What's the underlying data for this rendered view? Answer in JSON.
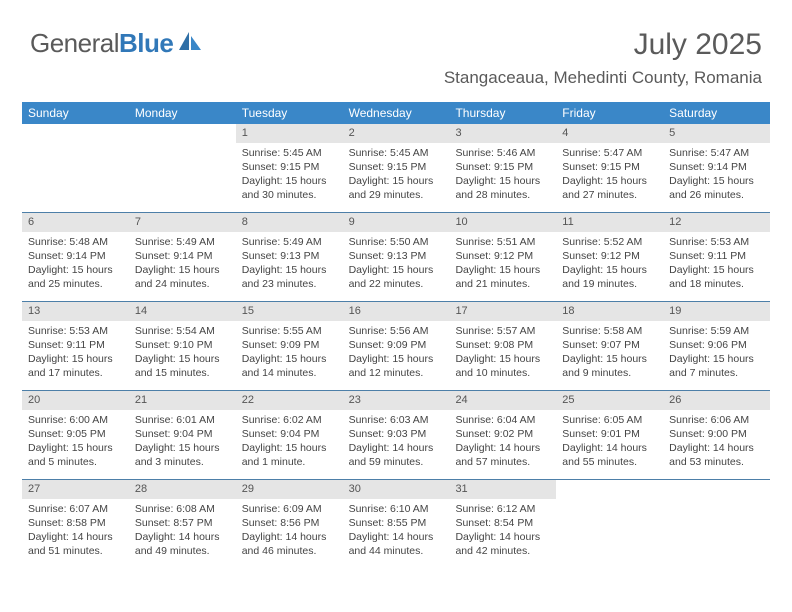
{
  "logo": {
    "text1": "General",
    "text2": "Blue"
  },
  "title": "July 2025",
  "subtitle": "Stangaceaua, Mehedinti County, Romania",
  "colors": {
    "header_bg": "#3a87c8",
    "header_text": "#ffffff",
    "rule": "#4d7fa8",
    "day_num_bg": "#e5e5e5",
    "body_text": "#444444",
    "title_text": "#5a5a5a",
    "logo_gray": "#5a5a5a",
    "logo_blue": "#3178b8"
  },
  "day_labels": [
    "Sunday",
    "Monday",
    "Tuesday",
    "Wednesday",
    "Thursday",
    "Friday",
    "Saturday"
  ],
  "weeks": [
    [
      {
        "n": "",
        "sunrise": "",
        "sunset": "",
        "daylight": ""
      },
      {
        "n": "",
        "sunrise": "",
        "sunset": "",
        "daylight": ""
      },
      {
        "n": "1",
        "sunrise": "Sunrise: 5:45 AM",
        "sunset": "Sunset: 9:15 PM",
        "daylight": "Daylight: 15 hours and 30 minutes."
      },
      {
        "n": "2",
        "sunrise": "Sunrise: 5:45 AM",
        "sunset": "Sunset: 9:15 PM",
        "daylight": "Daylight: 15 hours and 29 minutes."
      },
      {
        "n": "3",
        "sunrise": "Sunrise: 5:46 AM",
        "sunset": "Sunset: 9:15 PM",
        "daylight": "Daylight: 15 hours and 28 minutes."
      },
      {
        "n": "4",
        "sunrise": "Sunrise: 5:47 AM",
        "sunset": "Sunset: 9:15 PM",
        "daylight": "Daylight: 15 hours and 27 minutes."
      },
      {
        "n": "5",
        "sunrise": "Sunrise: 5:47 AM",
        "sunset": "Sunset: 9:14 PM",
        "daylight": "Daylight: 15 hours and 26 minutes."
      }
    ],
    [
      {
        "n": "6",
        "sunrise": "Sunrise: 5:48 AM",
        "sunset": "Sunset: 9:14 PM",
        "daylight": "Daylight: 15 hours and 25 minutes."
      },
      {
        "n": "7",
        "sunrise": "Sunrise: 5:49 AM",
        "sunset": "Sunset: 9:14 PM",
        "daylight": "Daylight: 15 hours and 24 minutes."
      },
      {
        "n": "8",
        "sunrise": "Sunrise: 5:49 AM",
        "sunset": "Sunset: 9:13 PM",
        "daylight": "Daylight: 15 hours and 23 minutes."
      },
      {
        "n": "9",
        "sunrise": "Sunrise: 5:50 AM",
        "sunset": "Sunset: 9:13 PM",
        "daylight": "Daylight: 15 hours and 22 minutes."
      },
      {
        "n": "10",
        "sunrise": "Sunrise: 5:51 AM",
        "sunset": "Sunset: 9:12 PM",
        "daylight": "Daylight: 15 hours and 21 minutes."
      },
      {
        "n": "11",
        "sunrise": "Sunrise: 5:52 AM",
        "sunset": "Sunset: 9:12 PM",
        "daylight": "Daylight: 15 hours and 19 minutes."
      },
      {
        "n": "12",
        "sunrise": "Sunrise: 5:53 AM",
        "sunset": "Sunset: 9:11 PM",
        "daylight": "Daylight: 15 hours and 18 minutes."
      }
    ],
    [
      {
        "n": "13",
        "sunrise": "Sunrise: 5:53 AM",
        "sunset": "Sunset: 9:11 PM",
        "daylight": "Daylight: 15 hours and 17 minutes."
      },
      {
        "n": "14",
        "sunrise": "Sunrise: 5:54 AM",
        "sunset": "Sunset: 9:10 PM",
        "daylight": "Daylight: 15 hours and 15 minutes."
      },
      {
        "n": "15",
        "sunrise": "Sunrise: 5:55 AM",
        "sunset": "Sunset: 9:09 PM",
        "daylight": "Daylight: 15 hours and 14 minutes."
      },
      {
        "n": "16",
        "sunrise": "Sunrise: 5:56 AM",
        "sunset": "Sunset: 9:09 PM",
        "daylight": "Daylight: 15 hours and 12 minutes."
      },
      {
        "n": "17",
        "sunrise": "Sunrise: 5:57 AM",
        "sunset": "Sunset: 9:08 PM",
        "daylight": "Daylight: 15 hours and 10 minutes."
      },
      {
        "n": "18",
        "sunrise": "Sunrise: 5:58 AM",
        "sunset": "Sunset: 9:07 PM",
        "daylight": "Daylight: 15 hours and 9 minutes."
      },
      {
        "n": "19",
        "sunrise": "Sunrise: 5:59 AM",
        "sunset": "Sunset: 9:06 PM",
        "daylight": "Daylight: 15 hours and 7 minutes."
      }
    ],
    [
      {
        "n": "20",
        "sunrise": "Sunrise: 6:00 AM",
        "sunset": "Sunset: 9:05 PM",
        "daylight": "Daylight: 15 hours and 5 minutes."
      },
      {
        "n": "21",
        "sunrise": "Sunrise: 6:01 AM",
        "sunset": "Sunset: 9:04 PM",
        "daylight": "Daylight: 15 hours and 3 minutes."
      },
      {
        "n": "22",
        "sunrise": "Sunrise: 6:02 AM",
        "sunset": "Sunset: 9:04 PM",
        "daylight": "Daylight: 15 hours and 1 minute."
      },
      {
        "n": "23",
        "sunrise": "Sunrise: 6:03 AM",
        "sunset": "Sunset: 9:03 PM",
        "daylight": "Daylight: 14 hours and 59 minutes."
      },
      {
        "n": "24",
        "sunrise": "Sunrise: 6:04 AM",
        "sunset": "Sunset: 9:02 PM",
        "daylight": "Daylight: 14 hours and 57 minutes."
      },
      {
        "n": "25",
        "sunrise": "Sunrise: 6:05 AM",
        "sunset": "Sunset: 9:01 PM",
        "daylight": "Daylight: 14 hours and 55 minutes."
      },
      {
        "n": "26",
        "sunrise": "Sunrise: 6:06 AM",
        "sunset": "Sunset: 9:00 PM",
        "daylight": "Daylight: 14 hours and 53 minutes."
      }
    ],
    [
      {
        "n": "27",
        "sunrise": "Sunrise: 6:07 AM",
        "sunset": "Sunset: 8:58 PM",
        "daylight": "Daylight: 14 hours and 51 minutes."
      },
      {
        "n": "28",
        "sunrise": "Sunrise: 6:08 AM",
        "sunset": "Sunset: 8:57 PM",
        "daylight": "Daylight: 14 hours and 49 minutes."
      },
      {
        "n": "29",
        "sunrise": "Sunrise: 6:09 AM",
        "sunset": "Sunset: 8:56 PM",
        "daylight": "Daylight: 14 hours and 46 minutes."
      },
      {
        "n": "30",
        "sunrise": "Sunrise: 6:10 AM",
        "sunset": "Sunset: 8:55 PM",
        "daylight": "Daylight: 14 hours and 44 minutes."
      },
      {
        "n": "31",
        "sunrise": "Sunrise: 6:12 AM",
        "sunset": "Sunset: 8:54 PM",
        "daylight": "Daylight: 14 hours and 42 minutes."
      },
      {
        "n": "",
        "sunrise": "",
        "sunset": "",
        "daylight": ""
      },
      {
        "n": "",
        "sunrise": "",
        "sunset": "",
        "daylight": ""
      }
    ]
  ]
}
